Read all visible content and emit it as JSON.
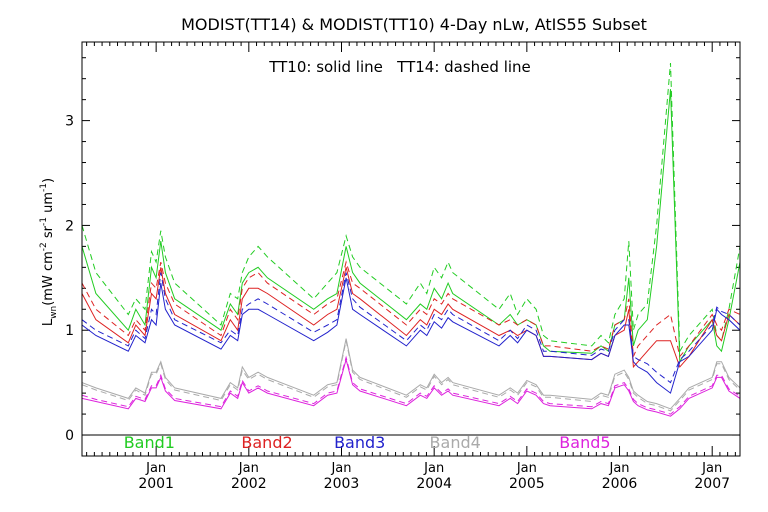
{
  "chart_data": {
    "type": "line",
    "title": "MODIST(TT14) & MODIST(TT10) 4-Day nLw, AtIS55 Subset",
    "annotation": "TT10: solid line   TT14: dashed line",
    "ylabel_main": "L",
    "ylabel_sub": "wn",
    "ylabel_units": "(mW cm",
    "ylabel_units_sup1": "-2",
    "ylabel_units_mid": " sr",
    "ylabel_units_sup2": "-1",
    "ylabel_units_mid2": " um",
    "ylabel_units_sup3": "-1",
    "ylabel_units_end": ")",
    "xlim": [
      2000.2,
      2007.3
    ],
    "ylim": [
      -0.2,
      3.75
    ],
    "y_ticks": [
      0,
      1,
      2,
      3
    ],
    "x_major_ticks": [
      2001.0,
      2002.0,
      2003.0,
      2004.0,
      2005.0,
      2006.0,
      2007.0
    ],
    "x_tick_labels_top": [
      "Jan",
      "Jan",
      "Jan",
      "Jan",
      "Jan",
      "Jan",
      "Jan"
    ],
    "x_tick_labels_bottom": [
      "2001",
      "2002",
      "2003",
      "2004",
      "2005",
      "2006",
      "2007"
    ],
    "zero_line": true,
    "band_labels": [
      {
        "text": "Band1",
        "x": 2000.65,
        "color": "#22cc22"
      },
      {
        "text": "Band2",
        "x": 2001.92,
        "color": "#dd2222"
      },
      {
        "text": "Band3",
        "x": 2002.92,
        "color": "#2222cc"
      },
      {
        "text": "Band4",
        "x": 2003.95,
        "color": "#aaaaaa"
      },
      {
        "text": "Band5",
        "x": 2005.35,
        "color": "#dd22dd"
      }
    ],
    "x": [
      2000.2,
      2000.35,
      2000.7,
      2000.78,
      2000.88,
      2000.95,
      2001.0,
      2001.05,
      2001.1,
      2001.2,
      2001.7,
      2001.8,
      2001.88,
      2001.93,
      2002.0,
      2002.1,
      2002.2,
      2002.7,
      2002.85,
      2002.95,
      2003.05,
      2003.12,
      2003.2,
      2003.7,
      2003.85,
      2003.92,
      2004.0,
      2004.08,
      2004.15,
      2004.2,
      2004.7,
      2004.82,
      2004.9,
      2005.0,
      2005.1,
      2005.18,
      2005.25,
      2005.7,
      2005.8,
      2005.88,
      2005.95,
      2006.05,
      2006.1,
      2006.15,
      2006.2,
      2006.3,
      2006.4,
      2006.55,
      2006.65,
      2006.75,
      2007.0,
      2007.05,
      2007.1,
      2007.18,
      2007.3
    ],
    "series": [
      {
        "name": "Band1",
        "style": "solid",
        "color": "#22cc22",
        "values": [
          1.8,
          1.35,
          1.0,
          1.2,
          1.05,
          1.6,
          1.5,
          1.85,
          1.55,
          1.3,
          1.0,
          1.25,
          1.15,
          1.45,
          1.55,
          1.6,
          1.5,
          1.2,
          1.3,
          1.35,
          1.8,
          1.55,
          1.45,
          1.1,
          1.25,
          1.2,
          1.4,
          1.3,
          1.45,
          1.35,
          1.05,
          1.15,
          1.05,
          1.1,
          1.05,
          0.85,
          0.8,
          0.78,
          0.85,
          0.8,
          1.05,
          1.1,
          1.5,
          0.85,
          1.0,
          1.1,
          1.8,
          3.3,
          0.7,
          0.85,
          1.1,
          0.85,
          0.8,
          1.1,
          1.65
        ]
      },
      {
        "name": "Band1 TT14",
        "style": "dashed",
        "color": "#22cc22",
        "values": [
          2.0,
          1.55,
          1.15,
          1.3,
          1.2,
          1.75,
          1.65,
          1.95,
          1.7,
          1.45,
          1.05,
          1.35,
          1.3,
          1.55,
          1.7,
          1.8,
          1.7,
          1.3,
          1.45,
          1.55,
          1.9,
          1.7,
          1.6,
          1.25,
          1.45,
          1.35,
          1.6,
          1.5,
          1.65,
          1.55,
          1.2,
          1.35,
          1.15,
          1.3,
          1.2,
          0.95,
          0.9,
          0.85,
          0.95,
          0.88,
          1.15,
          1.3,
          1.85,
          1.0,
          1.15,
          1.25,
          2.0,
          3.55,
          0.8,
          0.95,
          1.2,
          0.95,
          0.9,
          1.2,
          1.8
        ]
      },
      {
        "name": "Band2",
        "style": "solid",
        "color": "#dd2222",
        "values": [
          1.35,
          1.1,
          0.88,
          1.05,
          0.95,
          1.35,
          1.3,
          1.6,
          1.35,
          1.15,
          0.9,
          1.1,
          1.0,
          1.3,
          1.4,
          1.4,
          1.35,
          1.05,
          1.15,
          1.2,
          1.6,
          1.35,
          1.3,
          0.95,
          1.1,
          1.05,
          1.2,
          1.15,
          1.25,
          1.2,
          0.95,
          1.0,
          0.95,
          1.0,
          0.95,
          0.75,
          0.75,
          0.72,
          0.78,
          0.75,
          0.95,
          1.0,
          1.2,
          0.65,
          0.7,
          0.8,
          0.9,
          0.9,
          0.65,
          0.75,
          1.1,
          0.95,
          0.9,
          1.15,
          1.05
        ]
      },
      {
        "name": "Band2 TT14",
        "style": "dashed",
        "color": "#dd2222",
        "values": [
          1.45,
          1.2,
          0.95,
          1.1,
          1.0,
          1.45,
          1.4,
          1.65,
          1.45,
          1.25,
          0.95,
          1.2,
          1.1,
          1.4,
          1.5,
          1.55,
          1.45,
          1.15,
          1.25,
          1.3,
          1.65,
          1.45,
          1.4,
          1.05,
          1.2,
          1.15,
          1.3,
          1.25,
          1.35,
          1.3,
          1.05,
          1.1,
          1.05,
          1.1,
          1.05,
          0.85,
          0.85,
          0.8,
          0.85,
          0.82,
          1.05,
          1.1,
          1.3,
          0.75,
          0.85,
          0.95,
          1.05,
          1.15,
          0.75,
          0.85,
          1.15,
          1.05,
          1.0,
          1.2,
          1.15
        ]
      },
      {
        "name": "Band3",
        "style": "solid",
        "color": "#2222cc",
        "values": [
          1.05,
          0.95,
          0.8,
          0.95,
          0.88,
          1.1,
          1.05,
          1.45,
          1.2,
          1.05,
          0.82,
          0.95,
          0.9,
          1.15,
          1.2,
          1.2,
          1.15,
          0.9,
          0.98,
          1.05,
          1.5,
          1.2,
          1.15,
          0.85,
          1.0,
          0.95,
          1.08,
          1.02,
          1.12,
          1.08,
          0.85,
          0.95,
          0.88,
          1.0,
          0.95,
          0.75,
          0.75,
          0.72,
          0.78,
          0.75,
          0.95,
          1.05,
          1.05,
          0.7,
          0.65,
          0.6,
          0.5,
          0.4,
          0.7,
          0.75,
          1.0,
          1.2,
          1.15,
          1.1,
          1.0
        ]
      },
      {
        "name": "Band3 TT14",
        "style": "dashed",
        "color": "#2222cc",
        "values": [
          1.1,
          1.0,
          0.85,
          1.0,
          0.92,
          1.2,
          1.15,
          1.55,
          1.3,
          1.1,
          0.88,
          1.0,
          0.95,
          1.2,
          1.25,
          1.3,
          1.25,
          0.98,
          1.05,
          1.1,
          1.55,
          1.3,
          1.22,
          0.9,
          1.05,
          1.0,
          1.15,
          1.1,
          1.2,
          1.15,
          0.9,
          1.0,
          0.92,
          1.05,
          1.0,
          0.8,
          0.8,
          0.76,
          0.82,
          0.8,
          1.0,
          1.1,
          1.1,
          0.75,
          0.72,
          0.68,
          0.6,
          0.5,
          0.72,
          0.8,
          1.05,
          1.22,
          1.18,
          1.15,
          1.05
        ]
      },
      {
        "name": "Band4",
        "style": "solid",
        "color": "#aaaaaa",
        "values": [
          0.5,
          0.45,
          0.35,
          0.45,
          0.4,
          0.6,
          0.6,
          0.7,
          0.55,
          0.45,
          0.35,
          0.5,
          0.45,
          0.65,
          0.55,
          0.6,
          0.55,
          0.38,
          0.48,
          0.5,
          0.92,
          0.62,
          0.55,
          0.38,
          0.48,
          0.45,
          0.58,
          0.5,
          0.55,
          0.5,
          0.38,
          0.45,
          0.4,
          0.52,
          0.48,
          0.38,
          0.38,
          0.34,
          0.4,
          0.38,
          0.58,
          0.62,
          0.55,
          0.42,
          0.38,
          0.32,
          0.3,
          0.25,
          0.35,
          0.45,
          0.55,
          0.7,
          0.7,
          0.55,
          0.45
        ]
      },
      {
        "name": "Band4 TT14",
        "style": "dashed",
        "color": "#aaaaaa",
        "values": [
          0.48,
          0.43,
          0.33,
          0.43,
          0.38,
          0.58,
          0.58,
          0.68,
          0.53,
          0.43,
          0.33,
          0.48,
          0.43,
          0.62,
          0.53,
          0.58,
          0.53,
          0.36,
          0.46,
          0.48,
          0.9,
          0.6,
          0.53,
          0.36,
          0.46,
          0.43,
          0.56,
          0.48,
          0.53,
          0.48,
          0.36,
          0.43,
          0.38,
          0.5,
          0.46,
          0.36,
          0.36,
          0.32,
          0.38,
          0.36,
          0.56,
          0.6,
          0.53,
          0.4,
          0.36,
          0.3,
          0.28,
          0.23,
          0.33,
          0.43,
          0.53,
          0.68,
          0.68,
          0.53,
          0.43
        ]
      },
      {
        "name": "Band5",
        "style": "solid",
        "color": "#dd22dd",
        "values": [
          0.35,
          0.32,
          0.25,
          0.35,
          0.32,
          0.45,
          0.45,
          0.55,
          0.42,
          0.33,
          0.25,
          0.4,
          0.35,
          0.5,
          0.4,
          0.45,
          0.4,
          0.28,
          0.38,
          0.4,
          0.72,
          0.48,
          0.42,
          0.28,
          0.38,
          0.35,
          0.45,
          0.38,
          0.42,
          0.38,
          0.28,
          0.35,
          0.3,
          0.42,
          0.38,
          0.3,
          0.28,
          0.25,
          0.3,
          0.28,
          0.45,
          0.48,
          0.42,
          0.32,
          0.28,
          0.24,
          0.22,
          0.18,
          0.25,
          0.35,
          0.45,
          0.55,
          0.55,
          0.42,
          0.35
        ]
      },
      {
        "name": "Band5 TT14",
        "style": "dashed",
        "color": "#dd22dd",
        "values": [
          0.38,
          0.34,
          0.27,
          0.37,
          0.34,
          0.47,
          0.47,
          0.57,
          0.44,
          0.35,
          0.27,
          0.42,
          0.37,
          0.52,
          0.42,
          0.47,
          0.42,
          0.3,
          0.4,
          0.42,
          0.74,
          0.5,
          0.44,
          0.3,
          0.4,
          0.37,
          0.47,
          0.4,
          0.44,
          0.4,
          0.3,
          0.37,
          0.32,
          0.44,
          0.4,
          0.32,
          0.3,
          0.27,
          0.32,
          0.3,
          0.47,
          0.5,
          0.44,
          0.34,
          0.3,
          0.26,
          0.24,
          0.2,
          0.27,
          0.37,
          0.47,
          0.57,
          0.57,
          0.44,
          0.37
        ]
      }
    ]
  }
}
